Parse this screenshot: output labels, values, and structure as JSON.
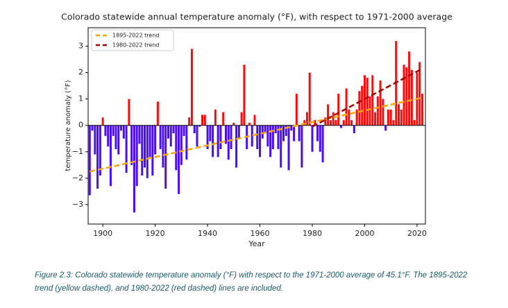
{
  "chart_data": {
    "type": "bar",
    "title": "Colorado statewide annual temperature anomaly (°F), with respect to 1971-2000 average",
    "x_label": "Year",
    "y_label": "temperature anomaly (°F)",
    "x": [
      1895,
      1896,
      1897,
      1898,
      1899,
      1900,
      1901,
      1902,
      1903,
      1904,
      1905,
      1906,
      1907,
      1908,
      1909,
      1910,
      1911,
      1912,
      1913,
      1914,
      1915,
      1916,
      1917,
      1918,
      1919,
      1920,
      1921,
      1922,
      1923,
      1924,
      1925,
      1926,
      1927,
      1928,
      1929,
      1930,
      1931,
      1932,
      1933,
      1934,
      1935,
      1936,
      1937,
      1938,
      1939,
      1940,
      1941,
      1942,
      1943,
      1944,
      1945,
      1946,
      1947,
      1948,
      1949,
      1950,
      1951,
      1952,
      1953,
      1954,
      1955,
      1956,
      1957,
      1958,
      1959,
      1960,
      1961,
      1962,
      1963,
      1964,
      1965,
      1966,
      1967,
      1968,
      1969,
      1970,
      1971,
      1972,
      1973,
      1974,
      1975,
      1976,
      1977,
      1978,
      1979,
      1980,
      1981,
      1982,
      1983,
      1984,
      1985,
      1986,
      1987,
      1988,
      1989,
      1990,
      1991,
      1992,
      1993,
      1994,
      1995,
      1996,
      1997,
      1998,
      1999,
      2000,
      2001,
      2002,
      2003,
      2004,
      2005,
      2006,
      2007,
      2008,
      2009,
      2010,
      2011,
      2012,
      2013,
      2014,
      2015,
      2016,
      2017,
      2018,
      2019,
      2020,
      2021,
      2022
    ],
    "values": [
      -2.65,
      -0.2,
      -1.1,
      -2.4,
      -1.9,
      0.3,
      -0.4,
      -0.8,
      -2.3,
      -0.4,
      -0.9,
      -1.1,
      -0.2,
      -0.5,
      -1.8,
      1.0,
      -1.5,
      -3.3,
      -2.3,
      -0.7,
      -1.9,
      -1.6,
      -2.0,
      -1.2,
      -1.9,
      -1.1,
      0.9,
      -0.9,
      -1.6,
      -2.4,
      -0.5,
      -0.8,
      -0.3,
      -1.7,
      -2.6,
      -1.5,
      -0.4,
      -1.3,
      0.3,
      2.9,
      -0.3,
      -0.8,
      -0.05,
      0.4,
      0.4,
      -0.9,
      -0.6,
      -1.2,
      0.6,
      -1.2,
      -0.9,
      0.5,
      -0.7,
      -1.3,
      -0.9,
      0.1,
      -1.6,
      -0.5,
      0.5,
      2.3,
      -0.9,
      0.1,
      -0.8,
      0.4,
      -0.9,
      -1.2,
      -0.5,
      -0.3,
      -0.8,
      -1.2,
      -0.9,
      -0.3,
      -0.9,
      -1.6,
      -0.6,
      -0.4,
      -1.7,
      -0.2,
      -0.6,
      1.2,
      -0.6,
      -1.6,
      0.2,
      0.5,
      2.0,
      -1.0,
      0.2,
      -0.6,
      -1.0,
      -1.4,
      0.3,
      0.8,
      0.2,
      0.5,
      0.2,
      1.2,
      -0.1,
      0.2,
      1.4,
      0.6,
      0.2,
      -0.3,
      0.6,
      1.3,
      1.5,
      1.9,
      1.8,
      1.1,
      1.9,
      0.5,
      1.1,
      1.7,
      1.0,
      -0.2,
      0.6,
      0.6,
      0.2,
      3.2,
      0.8,
      0.6,
      2.3,
      2.2,
      2.8,
      2.1,
      0.2,
      2.0,
      2.4,
      1.2
    ],
    "positive_color": "#ff0a0a",
    "negative_color": "#4d0df2",
    "trends": [
      {
        "name": "1895-2022 trend",
        "color": "#ffa500",
        "x": [
          1895,
          2022
        ],
        "values": [
          -1.75,
          1.05
        ]
      },
      {
        "name": "1980-2022 trend",
        "color": "#a50000",
        "x": [
          1980,
          2022
        ],
        "values": [
          -0.05,
          2.15
        ]
      }
    ],
    "xlim": [
      1894.4,
      2023.2
    ],
    "ylim": [
      -3.74,
      3.7
    ],
    "xticks": [
      1900,
      1920,
      1940,
      1960,
      1980,
      2000,
      2020
    ],
    "yticks": [
      {
        "value": -3,
        "label": "−3"
      },
      {
        "value": -2,
        "label": "−2"
      },
      {
        "value": -1,
        "label": "−1"
      },
      0,
      1,
      2,
      3
    ],
    "legend": "upper left",
    "grid": false
  },
  "caption": "Figure 2.3: Colorado statewide temperature anomaly (°F) with respect to the 1971-2000 average of 45.1°F. The 1895-2022 trend (yellow dashed), and 1980-2022 (red dashed) lines are included."
}
